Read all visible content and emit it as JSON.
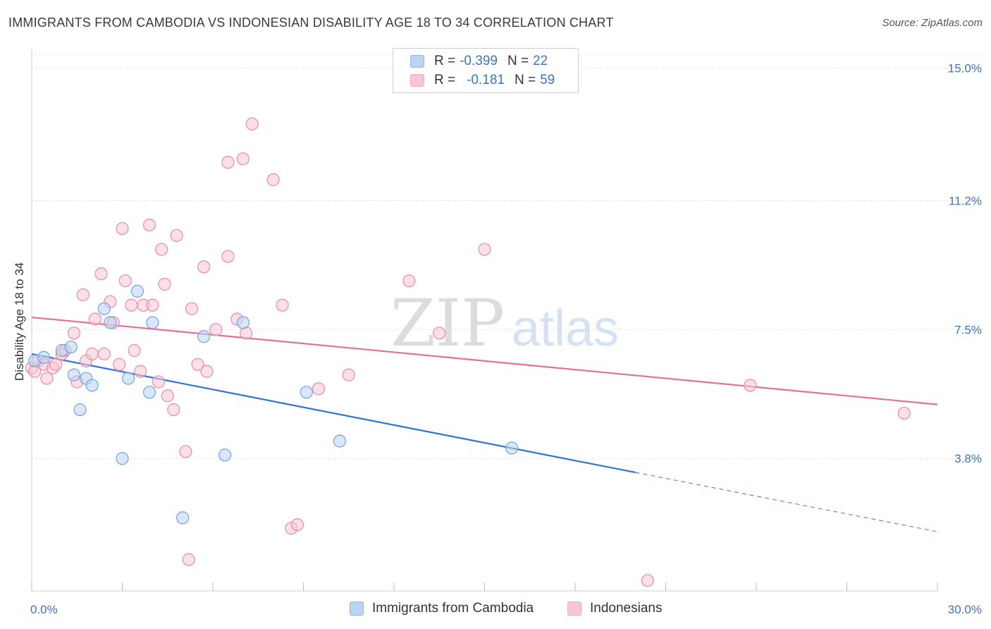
{
  "header": {
    "title": "IMMIGRANTS FROM CAMBODIA VS INDONESIAN DISABILITY AGE 18 TO 34 CORRELATION CHART",
    "source": "Source: ZipAtlas.com"
  },
  "watermark": {
    "zip": "ZIP",
    "atlas": "atlas"
  },
  "legend": {
    "rows": [
      {
        "r_label": "R =",
        "r_value": "-0.399",
        "n_label": "N =",
        "n_value": "22",
        "color": "#8fb6ea"
      },
      {
        "r_label": "R =",
        "r_value": "-0.181",
        "n_label": "N =",
        "n_value": "59",
        "color": "#f4a7c0"
      }
    ]
  },
  "bottom_legend": {
    "items": [
      {
        "label": "Immigrants from Cambodia",
        "color": "#8fb6ea"
      },
      {
        "label": "Indonesians",
        "color": "#f4a7c0"
      }
    ]
  },
  "chart_data": {
    "type": "scatter",
    "title": "IMMIGRANTS FROM CAMBODIA VS INDONESIAN DISABILITY AGE 18 TO 34 CORRELATION CHART",
    "xlabel": "",
    "ylabel": "Disability Age 18 to 34",
    "xlim": [
      0,
      30
    ],
    "ylim": [
      0.0,
      15.5
    ],
    "y_ticks": [
      3.8,
      7.5,
      11.2,
      15.0
    ],
    "y_tick_labels": [
      "3.8%",
      "7.5%",
      "11.2%",
      "15.0%"
    ],
    "x_tick_labels": [
      "0.0%",
      "30.0%"
    ],
    "grid": "horizontal-dashed",
    "legend_position": "top-center",
    "series": [
      {
        "name": "Immigrants from Cambodia",
        "color": "#6fa3e2",
        "fill": "#bcd4f3",
        "points": [
          [
            0.1,
            6.6
          ],
          [
            0.4,
            6.7
          ],
          [
            1.0,
            6.9
          ],
          [
            1.3,
            7.0
          ],
          [
            1.4,
            6.2
          ],
          [
            1.6,
            5.2
          ],
          [
            1.8,
            6.1
          ],
          [
            2.0,
            5.9
          ],
          [
            2.4,
            8.1
          ],
          [
            2.6,
            7.7
          ],
          [
            3.0,
            3.8
          ],
          [
            3.2,
            6.1
          ],
          [
            3.5,
            8.6
          ],
          [
            3.9,
            5.7
          ],
          [
            4.0,
            7.7
          ],
          [
            5.0,
            2.1
          ],
          [
            5.7,
            7.3
          ],
          [
            6.4,
            3.9
          ],
          [
            7.0,
            7.7
          ],
          [
            9.1,
            5.7
          ],
          [
            10.2,
            4.3
          ],
          [
            15.9,
            4.1
          ]
        ],
        "trend": {
          "x0": 0.0,
          "y0": 6.8,
          "x1": 20.0,
          "y1": 3.4,
          "dash_x1": 30.0,
          "dash_y1": 1.7
        }
      },
      {
        "name": "Indonesians",
        "color": "#e98aa9",
        "fill": "#f7c6d6",
        "points": [
          [
            0.0,
            6.4
          ],
          [
            0.2,
            6.6
          ],
          [
            0.4,
            6.5
          ],
          [
            0.5,
            6.1
          ],
          [
            0.7,
            6.4
          ],
          [
            0.8,
            6.5
          ],
          [
            1.0,
            6.8
          ],
          [
            1.1,
            6.9
          ],
          [
            1.4,
            7.4
          ],
          [
            1.5,
            6.0
          ],
          [
            1.7,
            8.5
          ],
          [
            1.8,
            6.6
          ],
          [
            2.0,
            6.8
          ],
          [
            2.1,
            7.8
          ],
          [
            2.3,
            9.1
          ],
          [
            2.4,
            6.8
          ],
          [
            2.6,
            8.3
          ],
          [
            2.7,
            7.7
          ],
          [
            2.9,
            6.5
          ],
          [
            3.0,
            10.4
          ],
          [
            3.1,
            8.9
          ],
          [
            3.3,
            8.2
          ],
          [
            3.4,
            6.9
          ],
          [
            3.6,
            6.3
          ],
          [
            3.7,
            8.2
          ],
          [
            3.9,
            10.5
          ],
          [
            4.0,
            8.2
          ],
          [
            4.2,
            6.0
          ],
          [
            4.3,
            9.8
          ],
          [
            4.4,
            8.8
          ],
          [
            4.5,
            5.6
          ],
          [
            4.7,
            5.2
          ],
          [
            4.8,
            10.2
          ],
          [
            5.1,
            4.0
          ],
          [
            5.2,
            0.9
          ],
          [
            5.3,
            8.1
          ],
          [
            5.5,
            6.5
          ],
          [
            5.7,
            9.3
          ],
          [
            5.8,
            6.3
          ],
          [
            6.1,
            7.5
          ],
          [
            6.5,
            12.3
          ],
          [
            6.5,
            9.6
          ],
          [
            6.8,
            7.8
          ],
          [
            7.0,
            12.4
          ],
          [
            7.1,
            7.4
          ],
          [
            7.3,
            13.4
          ],
          [
            8.0,
            11.8
          ],
          [
            8.3,
            8.2
          ],
          [
            8.6,
            1.8
          ],
          [
            8.8,
            1.9
          ],
          [
            9.5,
            5.8
          ],
          [
            10.5,
            6.2
          ],
          [
            12.5,
            8.9
          ],
          [
            13.5,
            7.4
          ],
          [
            15.0,
            9.8
          ],
          [
            20.4,
            0.3
          ],
          [
            23.8,
            5.9
          ],
          [
            28.9,
            5.1
          ],
          [
            0.1,
            6.3
          ]
        ],
        "trend": {
          "x0": 0.0,
          "y0": 7.85,
          "x1": 30.0,
          "y1": 5.35
        }
      }
    ]
  }
}
